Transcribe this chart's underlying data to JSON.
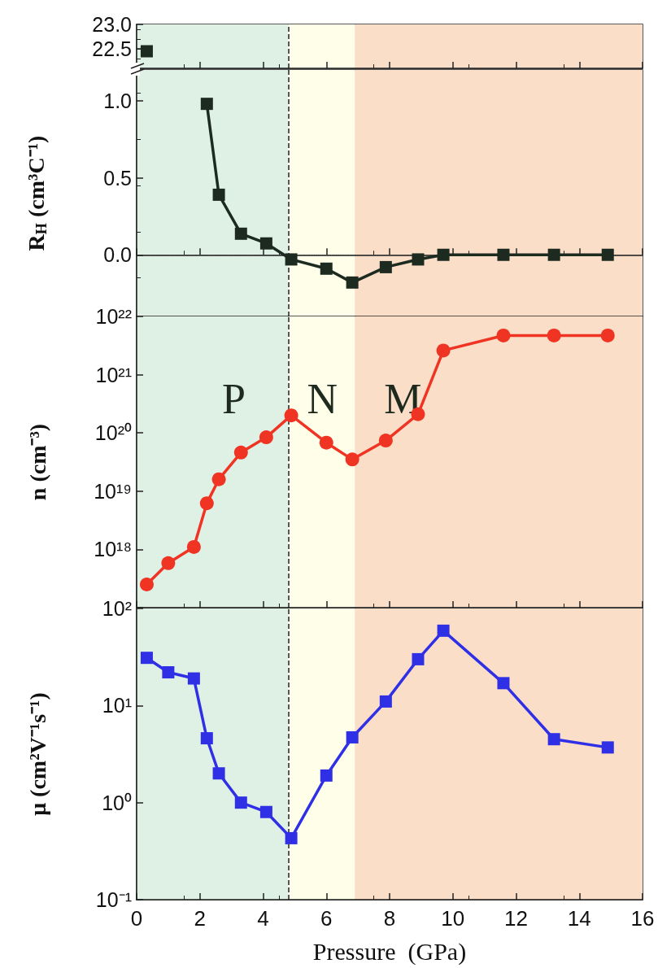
{
  "chart_data": [
    {
      "type": "line",
      "marker": "square",
      "xlim": [
        0,
        16
      ],
      "xticks": [
        0,
        2,
        4,
        6,
        8,
        10,
        12,
        14,
        16
      ],
      "ylim": [
        22.1,
        23.0
      ],
      "yticks": [
        22.5,
        {
          "value": 23.0,
          "label": "23.0"
        }
      ],
      "tick_labels": "y",
      "series": [
        {
          "color": "#1c2a20",
          "x": [
            0.32
          ],
          "values": [
            22.45
          ]
        }
      ],
      "bands": [
        {
          "axis": "x",
          "from": 0,
          "to": 4.8,
          "color": "#dff1e5"
        },
        {
          "axis": "x",
          "from": 4.8,
          "to": 6.9,
          "color": "#fefee9"
        },
        {
          "axis": "x",
          "from": 6.9,
          "to": 16,
          "color": "#fbdec8"
        }
      ],
      "ref_lines": [
        {
          "axis": "x",
          "value": 4.8,
          "color": "#222222",
          "line_style": "dashed"
        }
      ]
    },
    {
      "type": "line",
      "marker": "square",
      "ylabel": "R$_{H}$ (cm³C⁻¹)",
      "xlim": [
        0,
        16
      ],
      "xticks": [
        0,
        2,
        4,
        6,
        8,
        10,
        12,
        14,
        16
      ],
      "ylim": [
        -0.4,
        1.2
      ],
      "yticks": [
        {
          "value": 0,
          "label": "0.0"
        },
        0.5,
        {
          "value": 1.0,
          "label": "1.0"
        }
      ],
      "tick_labels": "y",
      "series": [
        {
          "color": "#1c2a20",
          "x": [
            2.22,
            2.6,
            3.3,
            4.1,
            4.89,
            6.0,
            6.82,
            7.88,
            8.9,
            9.7,
            11.6,
            13.2,
            14.9
          ],
          "values": [
            0.98,
            0.39,
            0.137,
            0.074,
            -0.03,
            -0.09,
            -0.18,
            -0.08,
            -0.03,
            0,
            0,
            0,
            0
          ]
        }
      ],
      "bands": [
        {
          "axis": "x",
          "from": 0,
          "to": 4.8,
          "color": "#dff1e5"
        },
        {
          "axis": "x",
          "from": 4.8,
          "to": 6.9,
          "color": "#fefee9"
        },
        {
          "axis": "x",
          "from": 6.9,
          "to": 16,
          "color": "#fbdec8"
        }
      ],
      "ref_lines": [
        {
          "axis": "x",
          "value": 4.8,
          "color": "#222222",
          "line_style": "dashed"
        },
        {
          "axis": "y",
          "value": 0,
          "color": "#333333",
          "line_style": "dotted"
        }
      ]
    },
    {
      "type": "line",
      "marker": "circle",
      "log": true,
      "ylabel": "n (cm⁻³)",
      "xlim": [
        0,
        16
      ],
      "xticks": [
        0,
        2,
        4,
        6,
        8,
        10,
        12,
        14,
        16
      ],
      "ylim": [
        1e+17,
        1e+22
      ],
      "yticks": [
        {
          "value": 1e+17,
          "label": null
        },
        {
          "value": 1e+18,
          "label": "10¹⁸"
        },
        {
          "value": 1e+19,
          "label": "10¹⁹"
        },
        {
          "value": 1e+20,
          "label": "10²⁰"
        },
        {
          "value": 1e+21,
          "label": "10²¹"
        },
        {
          "value": 1e+22,
          "label": "10²²"
        }
      ],
      "tick_labels": "y",
      "series": [
        {
          "color": "#f03424",
          "x": [
            0.32,
            1.0,
            1.81,
            2.22,
            2.6,
            3.3,
            4.1,
            4.89,
            6.0,
            6.82,
            7.88,
            8.9,
            9.7,
            11.6,
            13.2,
            14.9
          ],
          "values": [
            2.5e+17,
            5.8e+17,
            1.1e+18,
            6.2e+18,
            1.6e+19,
            4.6e+19,
            8.4e+19,
            2e+20,
            6.8e+19,
            3.5e+19,
            7.4e+19,
            2.1e+20,
            2.6e+21,
            4.7e+21,
            4.7e+21,
            4.7e+21
          ]
        }
      ],
      "bands": [
        {
          "axis": "x",
          "from": 0,
          "to": 4.8,
          "color": "#dff1e5",
          "label": "P"
        },
        {
          "axis": "x",
          "from": 4.8,
          "to": 6.9,
          "color": "#fefee9",
          "label": "N"
        },
        {
          "axis": "x",
          "from": 6.9,
          "to": 16,
          "color": "#fbdec8",
          "label": "M"
        }
      ],
      "ref_lines": [
        {
          "axis": "x",
          "value": 4.8,
          "color": "#222222",
          "line_style": "dashed"
        }
      ]
    },
    {
      "type": "line",
      "marker": "square",
      "log": true,
      "xlabel": "Pressure  (GPa)",
      "ylabel": "μ (cm²V⁻¹s⁻¹)",
      "xlim": [
        0,
        16
      ],
      "xticks": [
        0,
        2,
        4,
        6,
        8,
        10,
        12,
        14,
        16
      ],
      "ylim": [
        0.1,
        100
      ],
      "yticks": [
        {
          "value": 0.1,
          "label": "10⁻¹"
        },
        {
          "value": 1,
          "label": "10⁰"
        },
        {
          "value": 10,
          "label": "10¹"
        },
        {
          "value": 100,
          "label": "10²"
        }
      ],
      "series": [
        {
          "color": "#2f30e6",
          "x": [
            0.32,
            1.0,
            1.81,
            2.22,
            2.6,
            3.3,
            4.1,
            4.89,
            6.0,
            6.82,
            7.88,
            8.9,
            9.7,
            11.6,
            13.2,
            14.9
          ],
          "values": [
            31,
            22,
            19,
            4.6,
            2.0,
            1.0,
            0.8,
            0.43,
            1.9,
            4.7,
            11,
            30,
            59,
            17,
            4.5,
            3.7
          ]
        }
      ],
      "bands": [
        {
          "axis": "x",
          "from": 0,
          "to": 4.8,
          "color": "#dff1e5"
        },
        {
          "axis": "x",
          "from": 4.8,
          "to": 6.9,
          "color": "#fefee9"
        },
        {
          "axis": "x",
          "from": 6.9,
          "to": 16,
          "color": "#fbdec8"
        }
      ],
      "ref_lines": [
        {
          "axis": "x",
          "value": 4.8,
          "color": "#222222",
          "line_style": "dashed"
        }
      ]
    }
  ]
}
